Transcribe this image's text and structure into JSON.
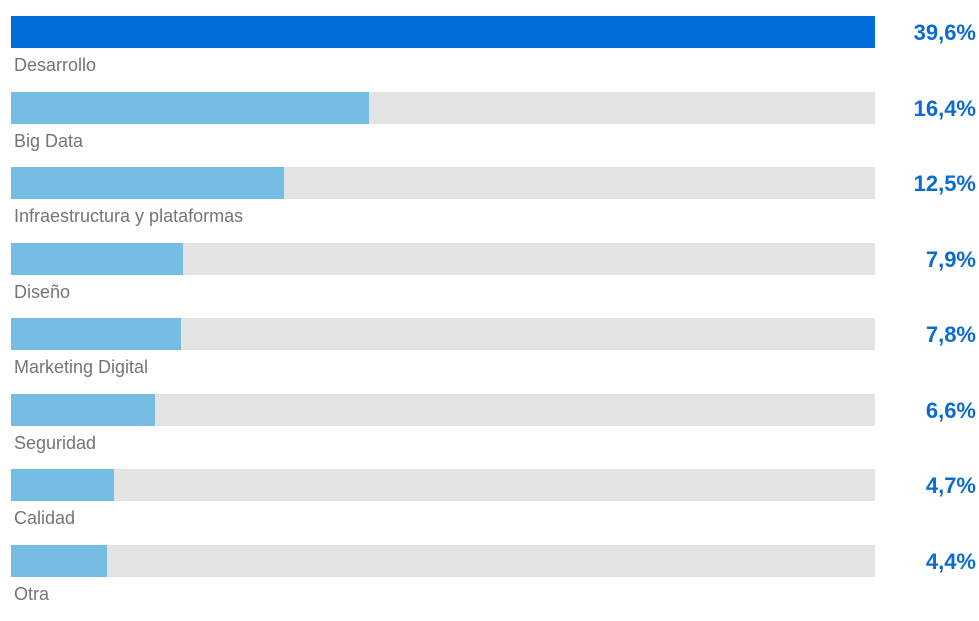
{
  "chart_data": {
    "type": "bar",
    "orientation": "horizontal",
    "categories": [
      "Desarrollo",
      "Big Data",
      "Infraestructura y plataformas",
      "Diseño",
      "Marketing Digital",
      "Seguridad",
      "Calidad",
      "Otra"
    ],
    "values": [
      39.6,
      16.4,
      12.5,
      7.9,
      7.8,
      6.6,
      4.7,
      4.4
    ],
    "value_labels": [
      "39,6%",
      "16,4%",
      "12,5%",
      "7,9%",
      "7,8%",
      "6,6%",
      "4,7%",
      "4,4%"
    ],
    "title": "",
    "xlabel": "",
    "ylabel": "",
    "xlim": [
      0,
      39.6
    ],
    "grid": false,
    "legend": "none",
    "colors": {
      "highlight_bar": "#006cd6",
      "bar": "#76bde3",
      "track": "#e3e3e3",
      "value_text": "#0b6bd3",
      "category_text": "#757575"
    }
  }
}
